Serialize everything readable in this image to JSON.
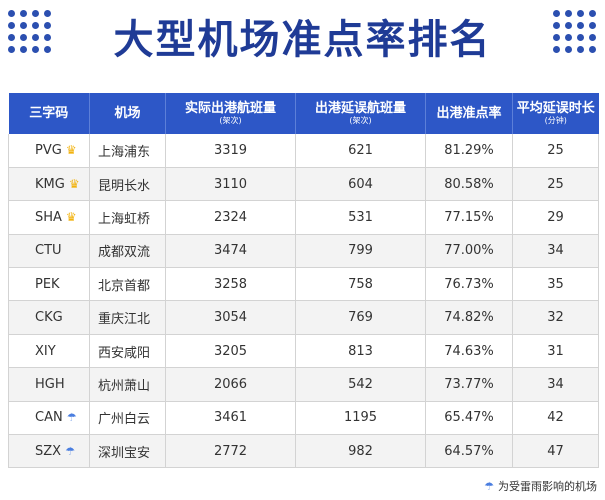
{
  "title": "大型机场准点率排名",
  "columns": [
    {
      "label": "三字码",
      "unit": ""
    },
    {
      "label": "机场",
      "unit": ""
    },
    {
      "label": "实际出港航班量",
      "unit": "(架次)"
    },
    {
      "label": "出港延误航班量",
      "unit": "(架次)"
    },
    {
      "label": "出港准点率",
      "unit": ""
    },
    {
      "label": "平均延误时长",
      "unit": "(分钟)"
    }
  ],
  "rows": [
    {
      "code": "PVG",
      "name": "上海浦东",
      "actual": "3319",
      "delayed": "621",
      "rate": "81.29%",
      "avg": "25",
      "icon": "crown-icon"
    },
    {
      "code": "KMG",
      "name": "昆明长水",
      "actual": "3110",
      "delayed": "604",
      "rate": "80.58%",
      "avg": "25",
      "icon": "crown-icon"
    },
    {
      "code": "SHA",
      "name": "上海虹桥",
      "actual": "2324",
      "delayed": "531",
      "rate": "77.15%",
      "avg": "29",
      "icon": "crown-icon"
    },
    {
      "code": "CTU",
      "name": "成都双流",
      "actual": "3474",
      "delayed": "799",
      "rate": "77.00%",
      "avg": "34",
      "icon": ""
    },
    {
      "code": "PEK",
      "name": "北京首都",
      "actual": "3258",
      "delayed": "758",
      "rate": "76.73%",
      "avg": "35",
      "icon": ""
    },
    {
      "code": "CKG",
      "name": "重庆江北",
      "actual": "3054",
      "delayed": "769",
      "rate": "74.82%",
      "avg": "32",
      "icon": ""
    },
    {
      "code": "XIY",
      "name": "西安咸阳",
      "actual": "3205",
      "delayed": "813",
      "rate": "74.63%",
      "avg": "31",
      "icon": ""
    },
    {
      "code": "HGH",
      "name": "杭州萧山",
      "actual": "2066",
      "delayed": "542",
      "rate": "73.77%",
      "avg": "34",
      "icon": ""
    },
    {
      "code": "CAN",
      "name": "广州白云",
      "actual": "3461",
      "delayed": "1195",
      "rate": "65.47%",
      "avg": "42",
      "icon": "thunderstorm-icon"
    },
    {
      "code": "SZX",
      "name": "深圳宝安",
      "actual": "2772",
      "delayed": "982",
      "rate": "64.57%",
      "avg": "47",
      "icon": "thunderstorm-icon"
    }
  ],
  "legend": {
    "text": "为受雷雨影响的机场",
    "icon": "thunderstorm-icon"
  },
  "colors": {
    "header_bg": "#2d57c7",
    "title": "#1f3b96",
    "crown": "#f2b20d",
    "storm": "#4a7ee0"
  }
}
